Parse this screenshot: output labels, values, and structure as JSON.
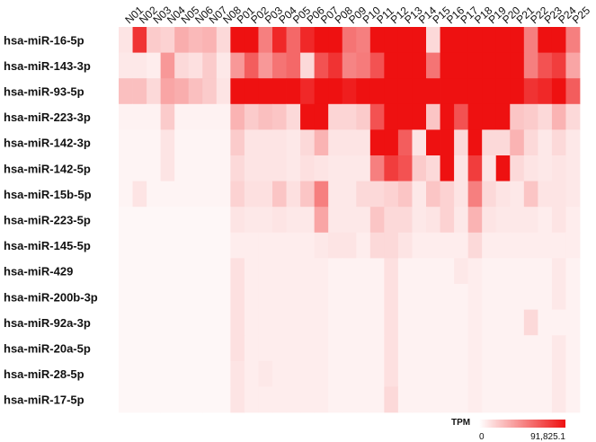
{
  "chart_data": {
    "type": "heatmap",
    "title": "",
    "xlabel": "",
    "ylabel": "",
    "columns": [
      "N01",
      "N02",
      "N03",
      "N04",
      "N05",
      "N06",
      "N07",
      "N08",
      "P01",
      "P02",
      "P03",
      "P04",
      "P05",
      "P06",
      "P07",
      "P08",
      "P09",
      "P10",
      "P11",
      "P12",
      "P13",
      "P14",
      "P15",
      "P16",
      "P17",
      "P18",
      "P19",
      "P20",
      "P21",
      "P22",
      "P23",
      "P24",
      "P25"
    ],
    "rows": [
      "hsa-miR-16-5p",
      "hsa-miR-143-3p",
      "hsa-miR-93-5p",
      "hsa-miR-223-3p",
      "hsa-miR-142-3p",
      "hsa-miR-142-5p",
      "hsa-miR-15b-5p",
      "hsa-miR-223-5p",
      "hsa-miR-145-5p",
      "hsa-miR-429",
      "hsa-miR-200b-3p",
      "hsa-miR-92a-3p",
      "hsa-miR-20a-5p",
      "hsa-miR-28-5p",
      "hsa-miR-17-5p"
    ],
    "values": [
      [
        5000,
        75000,
        12000,
        10000,
        22000,
        18000,
        20000,
        8000,
        91825,
        91825,
        40000,
        80000,
        50000,
        80000,
        91825,
        91825,
        45000,
        40000,
        91825,
        91825,
        91825,
        91825,
        8000,
        91825,
        91825,
        91825,
        91825,
        91825,
        91825,
        40000,
        91825,
        91825,
        40000
      ],
      [
        4000,
        4000,
        3000,
        30000,
        8000,
        6000,
        12000,
        4000,
        30000,
        55000,
        30000,
        45000,
        50000,
        8000,
        60000,
        75000,
        38000,
        42000,
        60000,
        91825,
        91825,
        91825,
        45000,
        91825,
        91825,
        91825,
        91825,
        91825,
        91825,
        40000,
        60000,
        70000,
        25000
      ],
      [
        16000,
        16000,
        8000,
        25000,
        22000,
        16000,
        12000,
        5000,
        91825,
        91825,
        91825,
        91825,
        91825,
        80000,
        91825,
        91825,
        85000,
        91825,
        91825,
        91825,
        91825,
        91825,
        91825,
        91825,
        91825,
        91825,
        91825,
        91825,
        91825,
        75000,
        80000,
        91825,
        55000
      ],
      [
        2000,
        2000,
        2000,
        12000,
        2000,
        2000,
        2000,
        2000,
        20000,
        12000,
        16000,
        14000,
        8000,
        91825,
        91825,
        9000,
        9000,
        12000,
        60000,
        91825,
        91825,
        91825,
        14000,
        91825,
        60000,
        91825,
        91825,
        91825,
        14000,
        12000,
        8000,
        20000,
        8000
      ],
      [
        1500,
        1500,
        1500,
        5000,
        1500,
        1500,
        1500,
        1500,
        12000,
        5000,
        5000,
        5000,
        4000,
        8000,
        20000,
        5000,
        5000,
        5000,
        91825,
        91825,
        55000,
        5000,
        91825,
        91825,
        8000,
        91825,
        8000,
        8000,
        20000,
        8000,
        4000,
        8000,
        4000
      ],
      [
        1500,
        1500,
        1500,
        5000,
        1500,
        1500,
        1500,
        1500,
        8000,
        5000,
        5000,
        5000,
        4000,
        6000,
        5000,
        4000,
        4000,
        4000,
        40000,
        70000,
        60000,
        12000,
        8000,
        91825,
        5000,
        70000,
        5000,
        91825,
        8000,
        5000,
        4000,
        5000,
        4000
      ],
      [
        1500,
        5000,
        1500,
        1500,
        1500,
        1500,
        1500,
        1500,
        10000,
        6000,
        6000,
        14000,
        6000,
        14000,
        40000,
        4000,
        4000,
        8000,
        8000,
        10000,
        14000,
        4000,
        14000,
        10000,
        5000,
        40000,
        8000,
        5000,
        4000,
        14000,
        5000,
        5000,
        4000
      ],
      [
        1000,
        1000,
        1000,
        1000,
        1000,
        1000,
        1000,
        1000,
        5000,
        4000,
        4000,
        5000,
        4000,
        4000,
        25000,
        4000,
        4000,
        4000,
        14000,
        8000,
        8000,
        4000,
        5000,
        10000,
        4000,
        20000,
        5000,
        4000,
        4000,
        4000,
        3000,
        5000,
        3000
      ],
      [
        1000,
        1000,
        1000,
        1000,
        1000,
        1000,
        1000,
        1000,
        3000,
        3000,
        3000,
        3000,
        3000,
        3000,
        4000,
        5000,
        5000,
        3000,
        8000,
        8000,
        5000,
        3000,
        3000,
        3000,
        3000,
        8000,
        3000,
        3000,
        3000,
        3000,
        3000,
        3000,
        3000
      ],
      [
        1000,
        1000,
        1000,
        1000,
        1000,
        1000,
        1000,
        1000,
        6000,
        3000,
        3000,
        3000,
        3000,
        3000,
        3000,
        2000,
        2000,
        2000,
        2000,
        6000,
        2000,
        2000,
        2000,
        2000,
        4000,
        3000,
        2000,
        2000,
        2000,
        2000,
        2000,
        4000,
        2000
      ],
      [
        1000,
        1000,
        1000,
        1000,
        1000,
        1000,
        1000,
        1000,
        6000,
        3000,
        3000,
        3000,
        3000,
        3000,
        3000,
        2000,
        2000,
        2000,
        2000,
        6000,
        2000,
        2000,
        2000,
        2000,
        2000,
        3000,
        2000,
        2000,
        2000,
        2000,
        2000,
        4000,
        2000
      ],
      [
        1000,
        1000,
        1000,
        1000,
        1000,
        1000,
        1000,
        1000,
        6000,
        3000,
        3000,
        3000,
        3000,
        3000,
        3000,
        2000,
        2000,
        2000,
        2000,
        6000,
        2000,
        2000,
        2000,
        2000,
        2000,
        3000,
        2000,
        2000,
        2000,
        8000,
        2000,
        2000,
        2000
      ],
      [
        1000,
        1000,
        1000,
        1000,
        1000,
        1000,
        1000,
        1000,
        6000,
        3000,
        3000,
        3000,
        3000,
        3000,
        3000,
        2000,
        2000,
        2000,
        2000,
        6000,
        2000,
        2000,
        2000,
        2000,
        2000,
        3000,
        2000,
        2000,
        2000,
        2000,
        2000,
        4000,
        2000
      ],
      [
        1000,
        1000,
        1000,
        1000,
        1000,
        1000,
        1000,
        1000,
        5000,
        3000,
        4000,
        3000,
        3000,
        3000,
        3000,
        2000,
        2000,
        2000,
        2000,
        6000,
        2000,
        2000,
        2000,
        2000,
        2000,
        3000,
        2000,
        2000,
        2000,
        2000,
        2000,
        4000,
        2000
      ],
      [
        1000,
        1000,
        1000,
        1000,
        1000,
        1000,
        1000,
        1000,
        5000,
        3000,
        3000,
        3000,
        3000,
        3000,
        3000,
        2000,
        2000,
        2000,
        2000,
        8000,
        2000,
        2000,
        2000,
        2000,
        2000,
        3000,
        2000,
        2000,
        2000,
        2000,
        2000,
        4000,
        2000
      ]
    ],
    "legend": {
      "title": "TPM",
      "min": 0,
      "max": 91825.1,
      "min_label": "0",
      "max_label": "91,825.1",
      "color_low": "#ffffff",
      "color_high": "#ee1111"
    }
  }
}
